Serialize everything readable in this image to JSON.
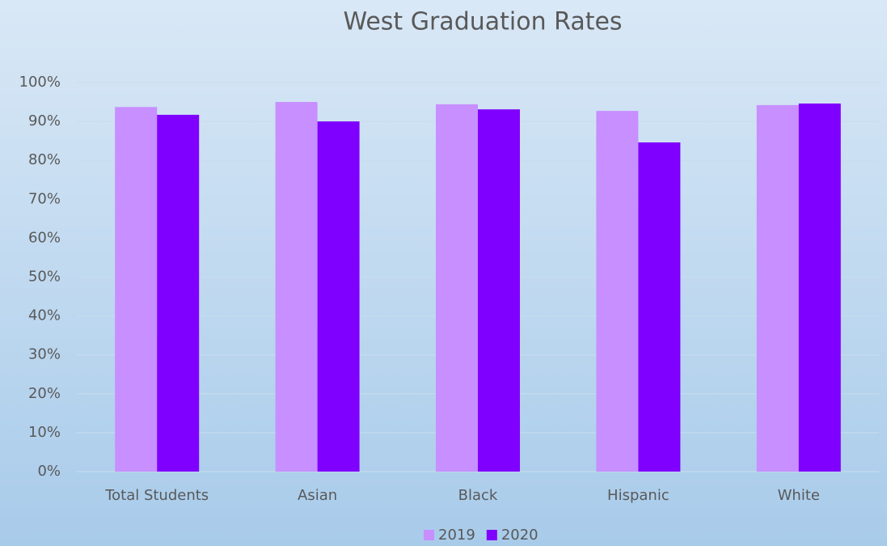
{
  "chart_data": {
    "type": "bar",
    "title": "West Graduation Rates",
    "categories": [
      "Total Students",
      "Asian",
      "Black",
      "Hispanic",
      "White"
    ],
    "series": [
      {
        "name": "2019",
        "color": "#c78fff",
        "values": [
          93.7,
          95.0,
          94.4,
          92.7,
          94.2
        ]
      },
      {
        "name": "2020",
        "color": "#8000ff",
        "values": [
          91.7,
          90.0,
          93.1,
          84.6,
          94.6
        ]
      }
    ],
    "ylim": [
      0,
      100
    ],
    "yticks": [
      {
        "value": 0,
        "label": "0%"
      },
      {
        "value": 10,
        "label": "10%"
      },
      {
        "value": 20,
        "label": "20%"
      },
      {
        "value": 30,
        "label": "30%"
      },
      {
        "value": 40,
        "label": "40%"
      },
      {
        "value": 50,
        "label": "50%"
      },
      {
        "value": 60,
        "label": "60%"
      },
      {
        "value": 70,
        "label": "70%"
      },
      {
        "value": 80,
        "label": "80%"
      },
      {
        "value": 90,
        "label": "90%"
      },
      {
        "value": 100,
        "label": "100%"
      }
    ],
    "grid": true,
    "legend": "bottom"
  }
}
